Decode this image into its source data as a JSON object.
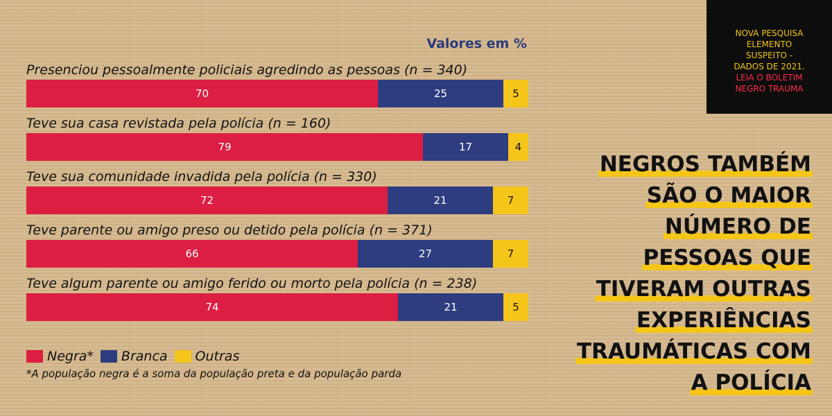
{
  "colors": {
    "negra": "#dc1e42",
    "branca": "#2e3d80",
    "outras": "#f6c51a"
  },
  "chart_data": {
    "type": "bar",
    "orientation": "horizontal",
    "stacked": true,
    "unit_label": "Valores em %",
    "xlim": [
      0,
      100
    ],
    "categories": [
      "Presenciou pessoalmente policiais agredindo as pessoas (n = 340)",
      "Teve sua casa revistada pela polícia (n = 160)",
      "Teve sua comunidade invadida pela polícia (n = 330)",
      "Teve parente ou amigo preso ou detido pela polícia (n = 371)",
      "Teve algum parente ou amigo ferido ou morto pela polícia (n = 238)"
    ],
    "series": [
      {
        "name": "Negra*",
        "values": [
          70,
          79,
          72,
          66,
          74
        ]
      },
      {
        "name": "Branca",
        "values": [
          25,
          17,
          21,
          27,
          21
        ]
      },
      {
        "name": "Outras",
        "values": [
          5,
          4,
          7,
          7,
          5
        ]
      }
    ],
    "legend": {
      "position": "bottom-left",
      "entries": [
        "Negra*",
        "Branca",
        "Outras"
      ]
    },
    "footnote": "*A população negra é a soma da população preta e da população parda"
  },
  "promo": {
    "lines_yellow": [
      "NOVA PESQUISA",
      "ELEMENTO",
      "SUSPEITO -",
      "DADOS DE 2021."
    ],
    "lines_red": [
      "LEIA O BOLETIM",
      "NEGRO TRAUMA"
    ]
  },
  "headline": {
    "lines": [
      "NEGROS TAMBÉM",
      "SÃO O MAIOR",
      "NÚMERO DE",
      "PESSOAS QUE",
      "TIVERAM OUTRAS",
      "EXPERIÊNCIAS",
      "TRAUMÁTICAS COM",
      "A POLÍCIA"
    ]
  }
}
